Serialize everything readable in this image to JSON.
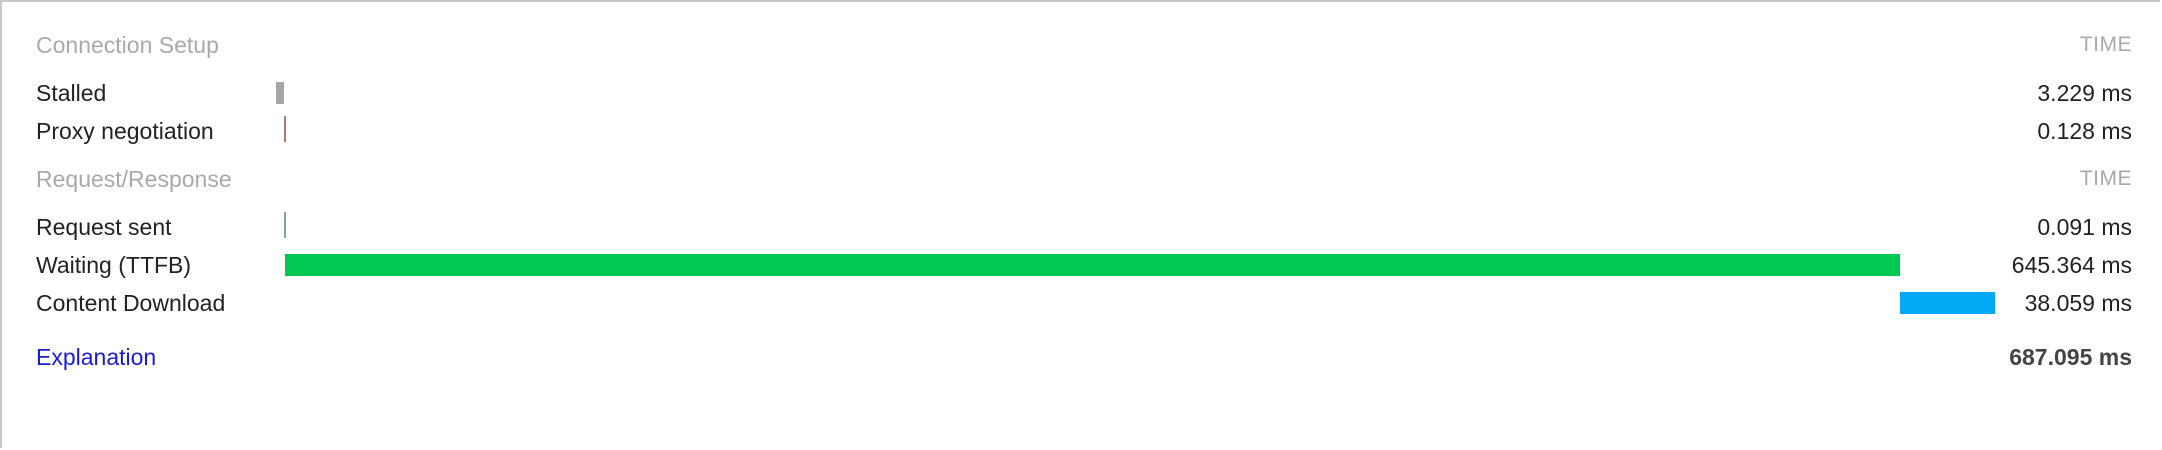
{
  "sections": {
    "connection_setup": {
      "title": "Connection Setup",
      "time_header": "TIME"
    },
    "request_response": {
      "title": "Request/Response",
      "time_header": "TIME"
    }
  },
  "timings": {
    "stalled": {
      "label": "Stalled",
      "value": "3.229 ms",
      "start_ms": 0,
      "duration_ms": 3.229,
      "color": "#a8a8a8"
    },
    "proxy": {
      "label": "Proxy negotiation",
      "value": "0.128 ms",
      "start_ms": 3.229,
      "duration_ms": 0.128,
      "color": "#b07a6a"
    },
    "request_sent": {
      "label": "Request sent",
      "value": "0.091 ms",
      "start_ms": 3.357,
      "duration_ms": 0.091,
      "color": "#7f9fb0"
    },
    "waiting": {
      "label": "Waiting (TTFB)",
      "value": "645.364 ms",
      "start_ms": 3.448,
      "duration_ms": 645.364,
      "color": "#00c853"
    },
    "download": {
      "label": "Content Download",
      "value": "38.059 ms",
      "start_ms": 648.812,
      "duration_ms": 38.059,
      "color": "#03a9f4"
    }
  },
  "footer": {
    "explanation_label": "Explanation",
    "total": "687.095 ms",
    "total_ms": 687.095
  }
}
